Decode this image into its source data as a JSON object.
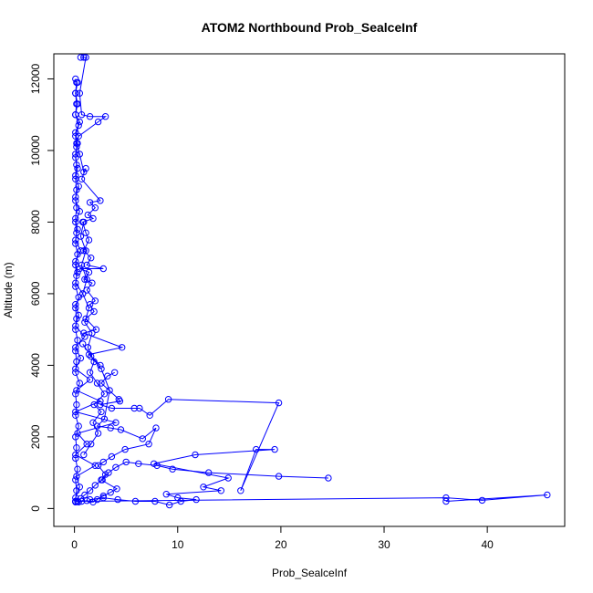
{
  "chart_data": {
    "type": "line",
    "title": "ATOM2 Northbound Prob_SealceInf",
    "xlabel": "Prob_SealceInf",
    "ylabel": "Altitude (m)",
    "xlim": [
      -2,
      47.5
    ],
    "ylim": [
      -500,
      12700
    ],
    "x_ticks": [
      0,
      10,
      20,
      30,
      40
    ],
    "x_tick_labels": [
      "0",
      "10",
      "20",
      "30",
      "40"
    ],
    "y_ticks": [
      0,
      2000,
      4000,
      6000,
      8000,
      10000,
      12000
    ],
    "y_tick_labels": [
      "0",
      "2000",
      "4000",
      "6000",
      "8000",
      "10000",
      "12000"
    ],
    "grid": false,
    "series_color": "#0000ff",
    "series": [
      {
        "markers": "open-circle",
        "points": [
          [
            0.1,
            12000
          ],
          [
            0.2,
            11900
          ],
          [
            0.1,
            11600
          ],
          [
            0.3,
            11300
          ],
          [
            0.1,
            11000
          ],
          [
            0.5,
            10800
          ],
          [
            0.1,
            10500
          ],
          [
            0.3,
            10200
          ],
          [
            0.1,
            9900
          ],
          [
            0.2,
            9600
          ],
          [
            0.1,
            9300
          ],
          [
            0.4,
            9000
          ],
          [
            0.1,
            8700
          ],
          [
            0.2,
            8400
          ],
          [
            0.1,
            8100
          ],
          [
            0.3,
            7800
          ],
          [
            0.1,
            7500
          ],
          [
            0.6,
            7200
          ],
          [
            0.1,
            6900
          ],
          [
            0.3,
            6600
          ],
          [
            0.1,
            6300
          ],
          [
            0.8,
            6000
          ],
          [
            0.1,
            5700
          ],
          [
            0.4,
            5400
          ],
          [
            0.1,
            5100
          ],
          [
            1.0,
            4800
          ],
          [
            0.1,
            4500
          ],
          [
            0.6,
            4200
          ],
          [
            0.1,
            3900
          ],
          [
            1.5,
            3600
          ],
          [
            0.2,
            3300
          ],
          [
            2.5,
            3000
          ],
          [
            0.1,
            2700
          ],
          [
            4.0,
            2400
          ],
          [
            0.3,
            2100
          ],
          [
            1.2,
            1800
          ],
          [
            0.1,
            1500
          ],
          [
            2.0,
            1200
          ],
          [
            0.2,
            900
          ],
          [
            0.5,
            600
          ],
          [
            0.1,
            300
          ],
          [
            0.1,
            200
          ],
          [
            36.0,
            300
          ],
          [
            39.5,
            230
          ],
          [
            45.8,
            380
          ],
          [
            36.0,
            200
          ]
        ]
      },
      {
        "markers": "open-circle",
        "points": [
          [
            0.1,
            200
          ],
          [
            0.2,
            500
          ],
          [
            0.1,
            800
          ],
          [
            0.3,
            1100
          ],
          [
            0.1,
            1400
          ],
          [
            0.2,
            1700
          ],
          [
            0.1,
            2000
          ],
          [
            0.4,
            2300
          ],
          [
            0.1,
            2600
          ],
          [
            0.2,
            2900
          ],
          [
            0.1,
            3200
          ],
          [
            0.5,
            3500
          ],
          [
            0.1,
            3800
          ],
          [
            0.2,
            4100
          ],
          [
            0.1,
            4400
          ],
          [
            0.3,
            4700
          ],
          [
            0.1,
            5000
          ],
          [
            0.2,
            5300
          ],
          [
            0.1,
            5600
          ],
          [
            0.4,
            5900
          ],
          [
            0.1,
            6200
          ],
          [
            0.2,
            6500
          ],
          [
            0.1,
            6800
          ],
          [
            0.3,
            7100
          ],
          [
            0.1,
            7400
          ],
          [
            0.2,
            7700
          ],
          [
            0.1,
            8000
          ],
          [
            0.5,
            8300
          ],
          [
            0.1,
            8600
          ],
          [
            0.2,
            8900
          ],
          [
            0.1,
            9200
          ],
          [
            0.3,
            9500
          ],
          [
            0.1,
            9800
          ],
          [
            0.2,
            10100
          ],
          [
            0.1,
            10400
          ],
          [
            0.4,
            10700
          ],
          [
            0.1,
            11000
          ],
          [
            0.2,
            11300
          ],
          [
            0.1,
            11600
          ],
          [
            0.3,
            11900
          ]
        ]
      },
      {
        "markers": "open-circle",
        "points": [
          [
            0.9,
            12600
          ],
          [
            0.6,
            12600
          ],
          [
            1.1,
            12600
          ],
          [
            0.5,
            11600
          ],
          [
            0.7,
            11000
          ],
          [
            1.5,
            10950
          ],
          [
            3.0,
            10950
          ],
          [
            2.3,
            10800
          ],
          [
            0.4,
            10400
          ],
          [
            0.2,
            10200
          ],
          [
            0.5,
            9900
          ],
          [
            0.9,
            9400
          ],
          [
            1.1,
            9500
          ],
          [
            0.7,
            9200
          ],
          [
            2.5,
            8600
          ],
          [
            1.5,
            8550
          ],
          [
            2.0,
            8400
          ],
          [
            1.3,
            8200
          ],
          [
            1.8,
            8100
          ],
          [
            0.8,
            8000
          ],
          [
            1.1,
            7700
          ],
          [
            1.4,
            7500
          ],
          [
            0.9,
            7200
          ],
          [
            1.6,
            7000
          ],
          [
            1.2,
            6800
          ],
          [
            2.8,
            6700
          ],
          [
            0.5,
            6700
          ],
          [
            1.4,
            6600
          ],
          [
            1.0,
            6400
          ],
          [
            1.7,
            6300
          ],
          [
            1.2,
            6100
          ],
          [
            2.0,
            5800
          ],
          [
            1.5,
            5700
          ],
          [
            1.9,
            5500
          ],
          [
            1.1,
            5300
          ],
          [
            2.1,
            5000
          ],
          [
            0.9,
            4900
          ],
          [
            4.6,
            4500
          ],
          [
            1.4,
            4300
          ],
          [
            2.5,
            4000
          ]
        ]
      },
      {
        "markers": "open-circle",
        "points": [
          [
            3.9,
            3800
          ],
          [
            3.2,
            3700
          ],
          [
            2.6,
            3500
          ],
          [
            4.3,
            3050
          ],
          [
            4.4,
            3000
          ],
          [
            2.5,
            2900
          ],
          [
            3.6,
            2800
          ],
          [
            5.8,
            2800
          ],
          [
            6.3,
            2800
          ],
          [
            7.3,
            2600
          ],
          [
            9.1,
            3050
          ],
          [
            19.8,
            2950
          ],
          [
            16.1,
            500
          ],
          [
            17.6,
            1650
          ],
          [
            19.4,
            1650
          ],
          [
            11.7,
            1500
          ],
          [
            7.7,
            1250
          ],
          [
            14.9,
            850
          ],
          [
            12.5,
            600
          ],
          [
            14.2,
            500
          ],
          [
            8.9,
            400
          ],
          [
            10.0,
            300
          ],
          [
            11.8,
            250
          ],
          [
            10.3,
            200
          ],
          [
            9.2,
            100
          ],
          [
            7.8,
            200
          ],
          [
            5.9,
            200
          ],
          [
            4.2,
            250
          ],
          [
            2.8,
            300
          ],
          [
            1.5,
            250
          ]
        ]
      },
      {
        "markers": "open-circle",
        "points": [
          [
            0.8,
            4600
          ],
          [
            1.6,
            4250
          ],
          [
            2.6,
            3900
          ],
          [
            3.4,
            3300
          ],
          [
            2.9,
            2500
          ],
          [
            2.2,
            2300
          ],
          [
            3.5,
            2250
          ],
          [
            4.5,
            2200
          ],
          [
            6.6,
            1950
          ],
          [
            7.9,
            2250
          ],
          [
            7.2,
            1800
          ],
          [
            4.9,
            1650
          ],
          [
            3.6,
            1450
          ],
          [
            2.8,
            1300
          ],
          [
            2.3,
            1200
          ],
          [
            3.0,
            950
          ],
          [
            2.6,
            800
          ],
          [
            4.1,
            550
          ],
          [
            3.5,
            450
          ],
          [
            2.8,
            350
          ],
          [
            2.2,
            250
          ],
          [
            1.8,
            180
          ],
          [
            1.2,
            220
          ],
          [
            0.7,
            200
          ],
          [
            0.4,
            180
          ]
        ]
      },
      {
        "markers": "open-circle",
        "points": [
          [
            24.6,
            850
          ],
          [
            19.8,
            900
          ],
          [
            13.0,
            1000
          ],
          [
            9.5,
            1100
          ],
          [
            8.0,
            1200
          ],
          [
            6.2,
            1250
          ],
          [
            5.0,
            1300
          ],
          [
            4.0,
            1150
          ],
          [
            3.3,
            1000
          ],
          [
            2.7,
            800
          ],
          [
            2.0,
            650
          ],
          [
            1.5,
            500
          ],
          [
            1.0,
            380
          ],
          [
            0.6,
            280
          ],
          [
            0.3,
            200
          ],
          [
            0.1,
            180
          ]
        ]
      },
      {
        "markers": "open-circle",
        "points": [
          [
            0.9,
            1500
          ],
          [
            1.6,
            1800
          ],
          [
            2.3,
            2100
          ],
          [
            1.8,
            2400
          ],
          [
            2.6,
            2700
          ],
          [
            1.9,
            2900
          ],
          [
            2.9,
            3200
          ],
          [
            2.2,
            3500
          ],
          [
            1.5,
            3800
          ],
          [
            1.9,
            4100
          ],
          [
            1.3,
            4500
          ],
          [
            1.7,
            4900
          ],
          [
            1.0,
            5200
          ],
          [
            1.4,
            5600
          ],
          [
            0.8,
            6000
          ],
          [
            1.2,
            6400
          ],
          [
            0.7,
            6800
          ],
          [
            1.1,
            7200
          ],
          [
            0.6,
            7600
          ],
          [
            0.9,
            8000
          ]
        ]
      }
    ]
  }
}
